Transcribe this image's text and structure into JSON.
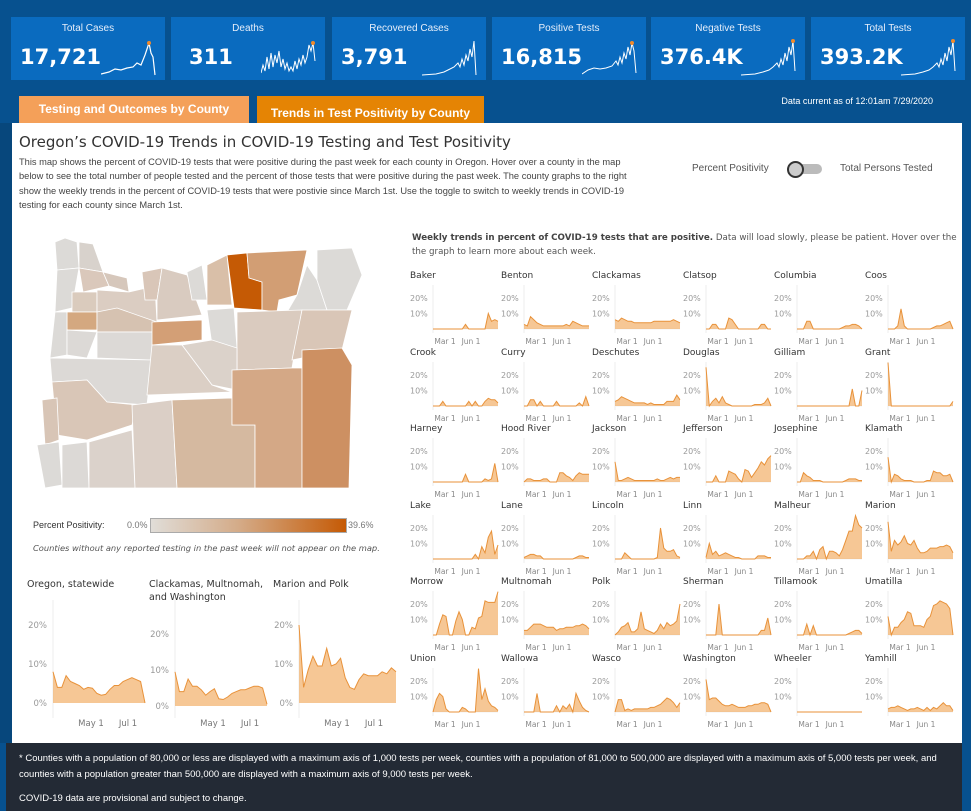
{
  "kpis": [
    {
      "label": "Total Cases",
      "value": "17,721"
    },
    {
      "label": "Deaths",
      "value": "311"
    },
    {
      "label": "Recovered Cases",
      "value": "3,791"
    },
    {
      "label": "Positive Tests",
      "value": "16,815"
    },
    {
      "label": "Negative Tests",
      "value": "376.4K"
    },
    {
      "label": "Total Tests",
      "value": "393.2K"
    }
  ],
  "tabs": [
    {
      "label": "Testing and Outcomes by County",
      "active": false
    },
    {
      "label": "Trends in Test Positivity by County",
      "active": true
    }
  ],
  "data_current": "Data current as of 12:01am 7/29/2020",
  "page": {
    "title": "Oregon’s COVID-19 Trends in COVID-19 Testing and Test Positivity",
    "description": "This map shows the percent of COVID-19 tests that were positive during the past week for each county in Oregon. Hover over a county in the map below to see the total number of people tested and the percent of those tests that were positive during the past week. The county graphs to the right show the weekly trends in the percent of COVID-19 tests that were postivie since March 1st. Use the toggle to switch to weekly trends in COVID-19 testing for each county since March 1st."
  },
  "toggle": {
    "left_label": "Percent Positivity",
    "right_label": "Total Persons Tested",
    "state": "Percent Positivity"
  },
  "legend": {
    "label": "Percent Positivity:",
    "min": "0.0%",
    "max": "39.6%",
    "colors": [
      "#e0ddd8",
      "#c55a05"
    ]
  },
  "map_note": "Counties without any reported testing in the past week will not appear on the map.",
  "weekly_title_bold": "Weekly trends in percent of COVID-19 tests that are positive.",
  "weekly_title_rest": " Data will load slowly, please be patient. Hover over the the graph to learn more about each week.",
  "accent_color": "#f0a24e",
  "big_charts": [
    {
      "title": "Oregon, statewide",
      "yticks": [
        "20%",
        "10%",
        "0%"
      ],
      "xticks": [
        "May 1",
        "Jul 1"
      ],
      "values": [
        8,
        4,
        4,
        7,
        5.5,
        5,
        4.5,
        3.5,
        4,
        3.8,
        2.5,
        2,
        2.2,
        3.5,
        4.5,
        4.5,
        5.5,
        6,
        6.5,
        6,
        5.5,
        0
      ]
    },
    {
      "title": "Clackamas, Multnomah, and Washington",
      "yticks": [
        "20%",
        "10%",
        "0%"
      ],
      "xticks": [
        "May 1",
        "Jul 1"
      ],
      "values": [
        9.5,
        4,
        4,
        7.5,
        5.5,
        5.5,
        4.5,
        3,
        4,
        4.8,
        2,
        1.8,
        2.5,
        3.5,
        4,
        4.5,
        4.5,
        5,
        5.5,
        5.5,
        5,
        0.5
      ]
    },
    {
      "title": "Marion and Polk",
      "yticks": [
        "20%",
        "10%",
        "0%"
      ],
      "xticks": [
        "May 1",
        "Jul 1"
      ],
      "values": [
        20,
        4,
        8.5,
        12,
        9.5,
        9.5,
        14,
        9.5,
        10,
        11.5,
        6.5,
        4,
        3.5,
        6,
        7.5,
        7,
        7,
        7,
        8,
        7.5,
        9,
        8
      ]
    }
  ],
  "county_charts": {
    "yticks": [
      "20%",
      "10%"
    ],
    "xticks": [
      "Mar 1",
      "Jun 1"
    ],
    "counties": [
      {
        "name": "Baker",
        "values": [
          0,
          0,
          0,
          0,
          0,
          0,
          0,
          0,
          0,
          0,
          3,
          0,
          0,
          0,
          0,
          0,
          0,
          10,
          5,
          6,
          5
        ]
      },
      {
        "name": "Benton",
        "values": [
          3,
          2,
          8,
          6,
          4,
          3,
          2,
          2,
          2,
          2,
          2,
          2,
          2,
          3,
          2,
          5,
          4,
          3,
          2,
          2,
          2
        ]
      },
      {
        "name": "Clackamas",
        "values": [
          6,
          5,
          7,
          6,
          5,
          5,
          4,
          4,
          4,
          4,
          4,
          4,
          5,
          5,
          5,
          5,
          5,
          5,
          6,
          5,
          4
        ]
      },
      {
        "name": "Clatsop",
        "values": [
          0,
          0,
          3,
          3,
          0,
          0,
          0,
          7,
          6,
          3,
          0,
          0,
          0,
          0,
          0,
          0,
          0,
          3,
          3,
          0,
          0
        ]
      },
      {
        "name": "Columbia",
        "values": [
          0,
          0,
          0,
          5,
          5,
          0,
          0,
          0,
          0,
          0,
          0,
          0,
          0,
          0,
          1,
          2,
          2,
          3,
          3,
          2,
          0
        ]
      },
      {
        "name": "Coos",
        "values": [
          0,
          0,
          0,
          2,
          13,
          2,
          0,
          0,
          0,
          0,
          0,
          0,
          0,
          0,
          1,
          2,
          2,
          3,
          4,
          5,
          0
        ]
      },
      {
        "name": "Crook",
        "values": [
          0,
          0,
          0,
          3,
          0,
          0,
          0,
          0,
          0,
          0,
          0,
          3,
          0,
          3,
          0,
          0,
          3,
          5,
          4,
          4,
          2
        ]
      },
      {
        "name": "Curry",
        "values": [
          0,
          0,
          4,
          4,
          0,
          3,
          0,
          0,
          0,
          0,
          3,
          0,
          0,
          0,
          0,
          0,
          0,
          2,
          0,
          6,
          0
        ]
      },
      {
        "name": "Deschutes",
        "values": [
          3,
          4,
          6,
          5,
          4,
          3,
          2,
          2,
          2,
          2,
          1,
          2,
          1,
          1,
          1,
          1,
          3,
          3,
          3,
          7,
          4
        ]
      },
      {
        "name": "Douglas",
        "values": [
          25,
          0,
          3,
          5,
          2,
          6,
          2,
          1,
          0,
          0,
          0,
          0,
          0,
          0,
          0,
          1,
          1,
          1,
          2,
          5,
          0
        ]
      },
      {
        "name": "Gilliam",
        "values": [
          0,
          0,
          0,
          0,
          0,
          0,
          0,
          0,
          0,
          0,
          0,
          0,
          0,
          0,
          0,
          0,
          0,
          11,
          0,
          0,
          10
        ]
      },
      {
        "name": "Grant",
        "values": [
          30,
          0,
          0,
          0,
          0,
          0,
          0,
          0,
          0,
          0,
          0,
          0,
          0,
          0,
          0,
          0,
          0,
          0,
          0,
          0,
          3
        ]
      },
      {
        "name": "Harney",
        "values": [
          0,
          0,
          0,
          0,
          0,
          0,
          0,
          0,
          0,
          0,
          5,
          0,
          0,
          0,
          0,
          0,
          2,
          1,
          2,
          12,
          0
        ]
      },
      {
        "name": "Hood River",
        "values": [
          0,
          2,
          2,
          1,
          1,
          1,
          2,
          2,
          0,
          0,
          0,
          6,
          6,
          4,
          3,
          1,
          4,
          6,
          5,
          5,
          5
        ]
      },
      {
        "name": "Jackson",
        "values": [
          13,
          1,
          1,
          2,
          3,
          2,
          1,
          1,
          1,
          1,
          1,
          1,
          1,
          2,
          1,
          1,
          2,
          3,
          2,
          3,
          3
        ]
      },
      {
        "name": "Jefferson",
        "values": [
          0,
          0,
          0,
          4,
          0,
          0,
          0,
          7,
          6,
          5,
          2,
          0,
          8,
          7,
          3,
          6,
          9,
          13,
          11,
          15,
          17
        ]
      },
      {
        "name": "Josephine",
        "values": [
          0,
          0,
          6,
          4,
          3,
          1,
          1,
          1,
          0,
          0,
          0,
          0,
          0,
          0,
          0,
          1,
          2,
          2,
          2,
          1,
          1
        ]
      },
      {
        "name": "Klamath",
        "values": [
          16,
          0,
          5,
          4,
          2,
          1,
          1,
          1,
          0,
          0,
          0,
          0,
          1,
          1,
          7,
          6,
          6,
          4,
          4,
          5,
          0
        ]
      },
      {
        "name": "Lake",
        "values": [
          0,
          0,
          0,
          0,
          0,
          0,
          0,
          0,
          0,
          0,
          0,
          0,
          0,
          3,
          0,
          8,
          4,
          14,
          18,
          3,
          9
        ]
      },
      {
        "name": "Lane",
        "values": [
          1,
          2,
          3,
          3,
          2,
          2,
          0,
          0,
          0,
          0,
          0,
          0,
          0,
          0,
          0,
          0,
          1,
          2,
          2,
          1,
          1
        ]
      },
      {
        "name": "Lincoln",
        "values": [
          0,
          0,
          0,
          4,
          2,
          0,
          0,
          0,
          0,
          0,
          0,
          0,
          0,
          1,
          20,
          7,
          5,
          5,
          6,
          2,
          1
        ]
      },
      {
        "name": "Linn",
        "values": [
          1,
          10,
          3,
          5,
          2,
          3,
          4,
          3,
          2,
          1,
          1,
          0,
          0,
          0,
          0,
          0,
          2,
          2,
          2,
          1,
          1
        ]
      },
      {
        "name": "Malheur",
        "values": [
          0,
          0,
          0,
          2,
          2,
          5,
          0,
          6,
          8,
          0,
          5,
          5,
          4,
          2,
          6,
          12,
          18,
          18,
          38,
          22,
          20
        ]
      },
      {
        "name": "Marion",
        "values": [
          24,
          5,
          12,
          9,
          11,
          15,
          10,
          9,
          12,
          7,
          4,
          4,
          5,
          7,
          7,
          7,
          8,
          8,
          9,
          8,
          4
        ]
      },
      {
        "name": "Morrow",
        "values": [
          0,
          0,
          7,
          13,
          12,
          0,
          0,
          9,
          15,
          10,
          0,
          0,
          5,
          4,
          11,
          12,
          22,
          21,
          21,
          21,
          35
        ]
      },
      {
        "name": "Multnomah",
        "values": [
          3,
          3,
          5,
          7,
          7,
          7,
          6,
          5,
          5,
          5,
          3,
          4,
          4,
          5,
          5,
          5,
          6,
          6,
          7,
          6,
          4
        ]
      },
      {
        "name": "Polk",
        "values": [
          0,
          2,
          5,
          6,
          8,
          2,
          2,
          4,
          15,
          4,
          3,
          2,
          1,
          3,
          7,
          4,
          8,
          6,
          7,
          9,
          20
        ]
      },
      {
        "name": "Sherman",
        "values": [
          0,
          0,
          0,
          0,
          20,
          0,
          0,
          0,
          0,
          0,
          0,
          0,
          0,
          0,
          0,
          0,
          0,
          3,
          3,
          11,
          0
        ]
      },
      {
        "name": "Tillamook",
        "values": [
          0,
          0,
          0,
          7,
          0,
          6,
          0,
          0,
          0,
          0,
          0,
          0,
          0,
          0,
          0,
          0,
          1,
          2,
          3,
          3,
          1
        ]
      },
      {
        "name": "Umatilla",
        "values": [
          12,
          0,
          5,
          5,
          8,
          10,
          15,
          14,
          6,
          6,
          6,
          5,
          10,
          12,
          19,
          20,
          22,
          21,
          20,
          17,
          0
        ]
      },
      {
        "name": "Union",
        "values": [
          0,
          8,
          12,
          10,
          2,
          0,
          0,
          0,
          0,
          3,
          2,
          0,
          0,
          0,
          38,
          8,
          15,
          7,
          4,
          3,
          1
        ]
      },
      {
        "name": "Wallowa",
        "values": [
          0,
          0,
          0,
          0,
          12,
          0,
          0,
          0,
          0,
          0,
          4,
          0,
          4,
          2,
          5,
          0,
          12,
          7,
          3,
          1,
          0
        ]
      },
      {
        "name": "Wasco",
        "values": [
          0,
          8,
          8,
          1,
          2,
          1,
          2,
          2,
          2,
          2,
          2,
          3,
          3,
          4,
          5,
          7,
          9,
          8,
          6,
          3,
          6
        ]
      },
      {
        "name": "Washington",
        "values": [
          21,
          8,
          9,
          9,
          7,
          5,
          4,
          4,
          5,
          4,
          3,
          3,
          3,
          4,
          4,
          5,
          5,
          6,
          6,
          5,
          0
        ]
      },
      {
        "name": "Wheeler",
        "values": [
          0,
          0,
          0,
          0,
          0,
          0,
          0,
          0,
          0,
          0,
          0,
          0,
          0,
          0,
          0,
          0,
          0,
          0,
          0,
          0,
          0
        ]
      },
      {
        "name": "Yamhill",
        "values": [
          2,
          3,
          3,
          4,
          3,
          2,
          1,
          2,
          2,
          3,
          2,
          1,
          3,
          1,
          3,
          2,
          4,
          6,
          4,
          4,
          1
        ]
      }
    ]
  },
  "footer": {
    "note": "* Counties with a population of 80,000 or less are displayed with a maximum axis of 1,000 tests per week, counties with a population of 81,000 to 500,000 are displayed with a maximum axis of 5,000 tests per week, and counties with a population greater than 500,000 are displayed with a maximum axis of 9,000 tests per week.",
    "disclaimer": "COVID-19 data are provisional and subject to change."
  }
}
